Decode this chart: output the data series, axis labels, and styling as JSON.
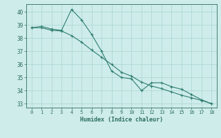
{
  "xlabel": "Humidex (Indice chaleur)",
  "x": [
    0,
    1,
    2,
    3,
    4,
    5,
    6,
    7,
    8,
    9,
    10,
    11,
    12,
    13,
    14,
    15,
    16,
    17,
    18
  ],
  "line1": [
    38.8,
    38.9,
    38.7,
    38.6,
    40.2,
    39.4,
    38.3,
    37.0,
    35.5,
    35.0,
    34.9,
    34.0,
    34.6,
    34.6,
    34.3,
    34.1,
    33.7,
    33.3,
    33.0
  ],
  "line2": [
    38.8,
    38.8,
    38.6,
    38.55,
    38.2,
    37.7,
    37.1,
    36.55,
    36.0,
    35.4,
    35.1,
    34.65,
    34.35,
    34.15,
    33.9,
    33.65,
    33.45,
    33.25,
    33.0
  ],
  "line_color": "#2d7d6e",
  "bg_color": "#ceecea",
  "grid_color": "#aed8d4",
  "tick_color": "#2d6e5e",
  "ylim_min": 32.7,
  "ylim_max": 40.6,
  "yticks": [
    33,
    34,
    35,
    36,
    37,
    38,
    39,
    40
  ],
  "xlim_min": -0.5,
  "xlim_max": 18.5,
  "font_family": "monospace"
}
